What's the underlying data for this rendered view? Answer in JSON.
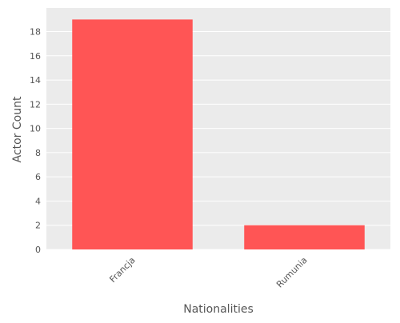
{
  "chart_data": {
    "type": "bar",
    "title": "",
    "xlabel": "Nationalities",
    "ylabel": "Actor Count",
    "categories": [
      "Francja",
      "Rumunia"
    ],
    "values": [
      19,
      2
    ],
    "ylim": [
      0,
      19.95
    ],
    "yticks": [
      0,
      2,
      4,
      6,
      8,
      10,
      12,
      14,
      16,
      18
    ],
    "grid": true,
    "legend": "none",
    "colors": {
      "bar": "#FF5555",
      "plot_background": "#EBEBEB",
      "grid": "#FFFFFF",
      "text": "#555555"
    }
  }
}
